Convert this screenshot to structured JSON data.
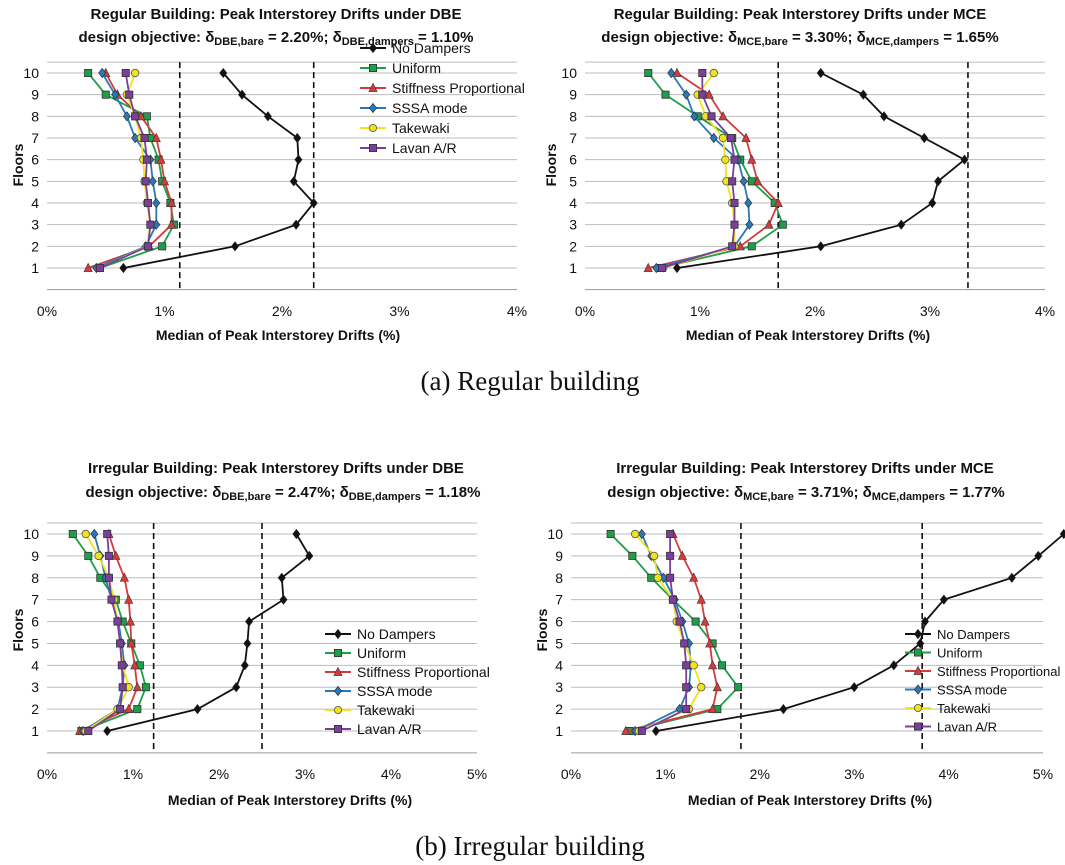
{
  "colors": {
    "No Dampers": "#111111",
    "Uniform": "#1f9e4a",
    "Stiffness Proportional": "#d23c3c",
    "SSSA mode": "#2a78b8",
    "Takewaki": "#f2e21a",
    "Lavan A/R": "#7a3f9a"
  },
  "markers": {
    "No Dampers": "diamond",
    "Uniform": "square",
    "Stiffness Proportional": "triangle",
    "SSSA mode": "diamond",
    "Takewaki": "circle",
    "Lavan A/R": "square"
  },
  "captions": {
    "a": "(a) Regular building",
    "b": "(b) Irregular building"
  },
  "chart_data": [
    {
      "type": "line",
      "title": "Regular Building:  Peak Interstorey Drifts under DBE",
      "subtitle": {
        "prefix": "design objective: δ",
        "s1": "DBE,bare",
        "v1": " = 2.20%;  δ",
        "s2": "DBE,dampers",
        "v2": " = 1.10%"
      },
      "xlabel": "Median of Peak Interstorey Drifts (%)",
      "ylabel": "Floors",
      "xlim": [
        0,
        4
      ],
      "x_ticks": [
        0,
        1,
        2,
        3,
        4
      ],
      "x_tick_labels": [
        "0%",
        "1%",
        "2%",
        "3%",
        "4%"
      ],
      "ylim": [
        0,
        10.5
      ],
      "y_ticks": [
        1,
        2,
        3,
        4,
        5,
        6,
        7,
        8,
        9,
        10
      ],
      "reference_lines": [
        1.13,
        2.27
      ],
      "grid": "horizontal",
      "legend_placement": "top-right",
      "floors": [
        1,
        2,
        3,
        4,
        5,
        6,
        7,
        8,
        9,
        10
      ],
      "series": [
        {
          "name": "No Dampers",
          "values": [
            0.65,
            1.6,
            2.12,
            2.27,
            2.1,
            2.14,
            2.13,
            1.88,
            1.66,
            1.5
          ]
        },
        {
          "name": "Uniform",
          "values": [
            0.45,
            0.98,
            1.08,
            1.05,
            0.98,
            0.95,
            0.88,
            0.85,
            0.5,
            0.35
          ]
        },
        {
          "name": "Stiffness Proportional",
          "values": [
            0.35,
            0.87,
            1.06,
            1.06,
            1.0,
            0.97,
            0.93,
            0.8,
            0.6,
            0.5
          ]
        },
        {
          "name": "SSSA mode",
          "values": [
            0.42,
            0.84,
            0.93,
            0.93,
            0.9,
            0.88,
            0.75,
            0.68,
            0.58,
            0.47
          ]
        },
        {
          "name": "Takewaki",
          "values": [
            0.45,
            0.85,
            0.88,
            0.85,
            0.83,
            0.82,
            0.8,
            0.75,
            0.68,
            0.75
          ]
        },
        {
          "name": "Lavan A/R",
          "values": [
            0.45,
            0.86,
            0.88,
            0.86,
            0.84,
            0.85,
            0.83,
            0.75,
            0.7,
            0.67
          ]
        }
      ]
    },
    {
      "type": "line",
      "title": "Regular Building:  Peak Interstorey Drifts under MCE",
      "subtitle": {
        "prefix": "design objective: δ",
        "s1": "MCE,bare",
        "v1": " = 3.30%; δ",
        "s2": "MCE,dampers",
        "v2": " = 1.65%"
      },
      "xlabel": "Median of Peak Interstorey Drifts (%)",
      "ylabel": "Floors",
      "xlim": [
        0,
        4
      ],
      "x_ticks": [
        0,
        1,
        2,
        3,
        4
      ],
      "x_tick_labels": [
        "0%",
        "1%",
        "2%",
        "3%",
        "4%"
      ],
      "ylim": [
        0,
        10.5
      ],
      "y_ticks": [
        1,
        2,
        3,
        4,
        5,
        6,
        7,
        8,
        9,
        10
      ],
      "reference_lines": [
        1.68,
        3.33
      ],
      "grid": "horizontal",
      "legend_placement": "none",
      "floors": [
        1,
        2,
        3,
        4,
        5,
        6,
        7,
        8,
        9,
        10
      ],
      "series": [
        {
          "name": "No Dampers",
          "values": [
            0.8,
            2.05,
            2.75,
            3.02,
            3.07,
            3.3,
            2.95,
            2.6,
            2.42,
            2.05
          ]
        },
        {
          "name": "Uniform",
          "values": [
            0.65,
            1.45,
            1.72,
            1.65,
            1.45,
            1.35,
            1.28,
            0.98,
            0.7,
            0.55
          ]
        },
        {
          "name": "Stiffness Proportional",
          "values": [
            0.55,
            1.35,
            1.6,
            1.68,
            1.5,
            1.45,
            1.4,
            1.2,
            1.08,
            0.8
          ]
        },
        {
          "name": "SSSA mode",
          "values": [
            0.62,
            1.3,
            1.43,
            1.42,
            1.38,
            1.33,
            1.12,
            0.95,
            0.88,
            0.75
          ]
        },
        {
          "name": "Takewaki",
          "values": [
            0.68,
            1.3,
            1.3,
            1.28,
            1.23,
            1.22,
            1.2,
            1.05,
            0.98,
            1.12
          ]
        },
        {
          "name": "Lavan A/R",
          "values": [
            0.67,
            1.28,
            1.3,
            1.3,
            1.28,
            1.3,
            1.27,
            1.1,
            1.02,
            1.02
          ]
        }
      ]
    },
    {
      "type": "line",
      "title": "Irregular Building: Peak Interstorey Drifts under DBE",
      "subtitle": {
        "prefix": "design objective: δ",
        "s1": "DBE,bare",
        "v1": " = 2.47%;  δ",
        "s2": "DBE,dampers",
        "v2": " = 1.18%"
      },
      "xlabel": "Median of Peak Interstorey Drifts (%)",
      "ylabel": "Floors",
      "xlim": [
        0,
        5
      ],
      "x_ticks": [
        0,
        1,
        2,
        3,
        4,
        5
      ],
      "x_tick_labels": [
        "0%",
        "1%",
        "2%",
        "3%",
        "4%",
        "5%"
      ],
      "ylim": [
        0,
        10.5
      ],
      "y_ticks": [
        1,
        2,
        3,
        4,
        5,
        6,
        7,
        8,
        9,
        10
      ],
      "reference_lines": [
        1.24,
        2.5
      ],
      "grid": "horizontal",
      "legend_placement": "lower-right",
      "floors": [
        1,
        2,
        3,
        4,
        5,
        6,
        7,
        8,
        9,
        10
      ],
      "series": [
        {
          "name": "No Dampers",
          "values": [
            0.7,
            1.75,
            2.2,
            2.3,
            2.33,
            2.35,
            2.75,
            2.73,
            3.05,
            2.9
          ]
        },
        {
          "name": "Uniform",
          "values": [
            0.4,
            1.05,
            1.15,
            1.08,
            0.98,
            0.88,
            0.8,
            0.62,
            0.48,
            0.3
          ]
        },
        {
          "name": "Stiffness Proportional",
          "values": [
            0.38,
            0.95,
            1.05,
            1.02,
            0.98,
            0.97,
            0.95,
            0.9,
            0.8,
            0.72
          ]
        },
        {
          "name": "SSSA mode",
          "values": [
            0.42,
            0.82,
            0.88,
            0.9,
            0.87,
            0.83,
            0.75,
            0.68,
            0.62,
            0.55
          ]
        },
        {
          "name": "Takewaki",
          "values": [
            0.45,
            0.82,
            0.95,
            0.88,
            0.85,
            0.82,
            0.78,
            0.72,
            0.6,
            0.45
          ]
        },
        {
          "name": "Lavan A/R",
          "values": [
            0.48,
            0.85,
            0.88,
            0.87,
            0.85,
            0.82,
            0.75,
            0.72,
            0.72,
            0.7
          ]
        }
      ]
    },
    {
      "type": "line",
      "title": "Irregular Building: Peak Interstorey Drifts under MCE",
      "subtitle": {
        "prefix": "design objective: δ",
        "s1": "MCE,bare",
        "v1": " = 3.71%;  δ",
        "s2": "MCE,dampers",
        "v2": " = 1.77%"
      },
      "xlabel": "Median of Peak Interstorey Drifts (%)",
      "ylabel": "Floors",
      "xlim": [
        0,
        5
      ],
      "x_ticks": [
        0,
        1,
        2,
        3,
        4,
        5
      ],
      "x_tick_labels": [
        "0%",
        "1%",
        "2%",
        "3%",
        "4%",
        "5%"
      ],
      "ylim": [
        0,
        10.5
      ],
      "y_ticks": [
        1,
        2,
        3,
        4,
        5,
        6,
        7,
        8,
        9,
        10
      ],
      "reference_lines": [
        1.8,
        3.72
      ],
      "grid": "horizontal",
      "legend_placement": "lower-right",
      "floors": [
        1,
        2,
        3,
        4,
        5,
        6,
        7,
        8,
        9,
        10
      ],
      "series": [
        {
          "name": "No Dampers",
          "values": [
            0.9,
            2.25,
            3.0,
            3.42,
            3.7,
            3.75,
            3.95,
            4.67,
            4.95,
            5.22
          ]
        },
        {
          "name": "Uniform",
          "values": [
            0.62,
            1.55,
            1.77,
            1.6,
            1.5,
            1.32,
            1.08,
            0.85,
            0.65,
            0.42
          ]
        },
        {
          "name": "Stiffness Proportional",
          "values": [
            0.58,
            1.5,
            1.55,
            1.5,
            1.47,
            1.42,
            1.38,
            1.3,
            1.18,
            1.08
          ]
        },
        {
          "name": "SSSA mode",
          "values": [
            0.68,
            1.15,
            1.25,
            1.27,
            1.25,
            1.18,
            1.1,
            0.98,
            0.85,
            0.75
          ]
        },
        {
          "name": "Takewaki",
          "values": [
            0.72,
            1.25,
            1.38,
            1.3,
            1.2,
            1.12,
            1.08,
            0.92,
            0.88,
            0.68
          ]
        },
        {
          "name": "Lavan A/R",
          "values": [
            0.75,
            1.22,
            1.22,
            1.22,
            1.2,
            1.15,
            1.08,
            1.05,
            1.05,
            1.05
          ]
        }
      ]
    }
  ]
}
